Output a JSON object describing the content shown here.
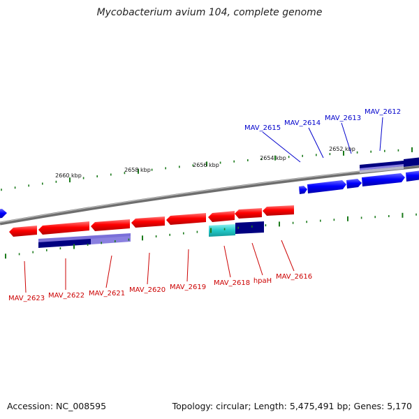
{
  "title": "Mycobacterium avium 104, complete genome",
  "footer": {
    "accession": "Accession: NC_008595",
    "summary": "Topology: circular; Length: 5,475,491 bp; Genes: 5,170"
  },
  "colors": {
    "forward_gene": "#0000ff",
    "reverse_gene": "#ff0000",
    "forward_label": "#0000cc",
    "reverse_label": "#cc0000",
    "tick": "#1a7a1a",
    "backbone": "#8a8a8a",
    "rna_dark": "#000080",
    "rna_light": "#7a6fd8",
    "cyan_feature": "#33cccc"
  },
  "ticks": [
    {
      "label": "2660 kbp"
    },
    {
      "label": "2658 kbp"
    },
    {
      "label": "2656 kbp"
    },
    {
      "label": "2654 kbp"
    },
    {
      "label": "2652 kbp"
    }
  ],
  "forward_genes": [
    {
      "label": "MAV_2615"
    },
    {
      "label": "MAV_2614"
    },
    {
      "label": "MAV_2613"
    },
    {
      "label": "MAV_2612"
    }
  ],
  "reverse_genes": [
    {
      "label": "MAV_2623"
    },
    {
      "label": "MAV_2622"
    },
    {
      "label": "MAV_2621"
    },
    {
      "label": "MAV_2620"
    },
    {
      "label": "MAV_2619"
    },
    {
      "label": "MAV_2618"
    },
    {
      "label": "hpaH"
    },
    {
      "label": "MAV_2616"
    }
  ]
}
